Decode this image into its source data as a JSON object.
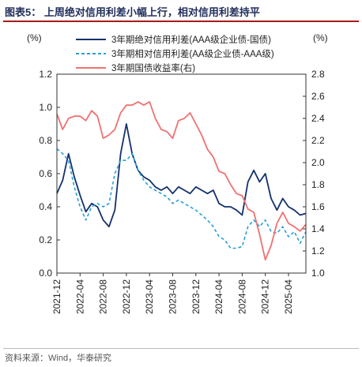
{
  "figure": {
    "title": "图表5：  上周绝对信用利差小幅上行，相对信用利差持平",
    "source": "资料来源：Wind，华泰研究"
  },
  "chart_data": {
    "type": "line",
    "left_unit": "(%)",
    "right_unit": "(%)",
    "left_axis": {
      "ylim": [
        0.0,
        1.2
      ],
      "ticks": [
        "0.0",
        "0.2",
        "0.4",
        "0.6",
        "0.8",
        "1.0",
        "1.2"
      ]
    },
    "right_axis": {
      "ylim": [
        1.0,
        2.8
      ],
      "ticks": [
        "1.0",
        "1.2",
        "1.4",
        "1.6",
        "1.8",
        "2.0",
        "2.2",
        "2.4",
        "2.6",
        "2.8"
      ]
    },
    "x_axis": {
      "start": "2021-12",
      "end": "2025-07",
      "ticks": [
        "2021-12",
        "2022-04",
        "2022-08",
        "2022-12",
        "2023-04",
        "2023-08",
        "2023-12",
        "2024-04",
        "2024-08",
        "2024-12",
        "2025-04"
      ]
    },
    "legend_position": "top-right",
    "grid": false,
    "series": [
      {
        "name": "3年期绝对信用利差(AAA级企业债-国债)",
        "axis": "left",
        "color": "#13316b",
        "style": "solid",
        "points": [
          [
            "2021-12",
            0.48
          ],
          [
            "2022-01",
            0.56
          ],
          [
            "2022-02",
            0.72
          ],
          [
            "2022-03",
            0.58
          ],
          [
            "2022-04",
            0.47
          ],
          [
            "2022-05",
            0.37
          ],
          [
            "2022-06",
            0.42
          ],
          [
            "2022-07",
            0.4
          ],
          [
            "2022-08",
            0.32
          ],
          [
            "2022-09",
            0.28
          ],
          [
            "2022-10",
            0.38
          ],
          [
            "2022-11",
            0.72
          ],
          [
            "2022-12",
            0.9
          ],
          [
            "2023-01",
            0.72
          ],
          [
            "2023-02",
            0.62
          ],
          [
            "2023-03",
            0.58
          ],
          [
            "2023-04",
            0.56
          ],
          [
            "2023-05",
            0.52
          ],
          [
            "2023-06",
            0.5
          ],
          [
            "2023-07",
            0.52
          ],
          [
            "2023-08",
            0.48
          ],
          [
            "2023-09",
            0.52
          ],
          [
            "2023-10",
            0.5
          ],
          [
            "2023-11",
            0.48
          ],
          [
            "2023-12",
            0.52
          ],
          [
            "2024-01",
            0.5
          ],
          [
            "2024-02",
            0.48
          ],
          [
            "2024-03",
            0.5
          ],
          [
            "2024-04",
            0.42
          ],
          [
            "2024-05",
            0.4
          ],
          [
            "2024-06",
            0.4
          ],
          [
            "2024-07",
            0.38
          ],
          [
            "2024-08",
            0.35
          ],
          [
            "2024-09",
            0.55
          ],
          [
            "2024-10",
            0.62
          ],
          [
            "2024-11",
            0.55
          ],
          [
            "2024-12",
            0.6
          ],
          [
            "2025-01",
            0.45
          ],
          [
            "2025-02",
            0.38
          ],
          [
            "2025-03",
            0.45
          ],
          [
            "2025-04",
            0.4
          ],
          [
            "2025-05",
            0.38
          ],
          [
            "2025-06",
            0.35
          ],
          [
            "2025-07",
            0.36
          ]
        ]
      },
      {
        "name": "3年期相对信用利差(AA级企业债-AAA级)",
        "axis": "left",
        "color": "#2a9fd6",
        "style": "dashed",
        "points": [
          [
            "2021-12",
            0.75
          ],
          [
            "2022-01",
            0.72
          ],
          [
            "2022-02",
            0.68
          ],
          [
            "2022-03",
            0.52
          ],
          [
            "2022-04",
            0.4
          ],
          [
            "2022-05",
            0.32
          ],
          [
            "2022-06",
            0.4
          ],
          [
            "2022-07",
            0.42
          ],
          [
            "2022-08",
            0.4
          ],
          [
            "2022-09",
            0.42
          ],
          [
            "2022-10",
            0.6
          ],
          [
            "2022-11",
            0.68
          ],
          [
            "2022-12",
            0.68
          ],
          [
            "2023-01",
            0.72
          ],
          [
            "2023-02",
            0.62
          ],
          [
            "2023-03",
            0.56
          ],
          [
            "2023-04",
            0.52
          ],
          [
            "2023-05",
            0.5
          ],
          [
            "2023-06",
            0.48
          ],
          [
            "2023-07",
            0.46
          ],
          [
            "2023-08",
            0.42
          ],
          [
            "2023-09",
            0.44
          ],
          [
            "2023-10",
            0.42
          ],
          [
            "2023-11",
            0.4
          ],
          [
            "2023-12",
            0.38
          ],
          [
            "2024-01",
            0.35
          ],
          [
            "2024-02",
            0.32
          ],
          [
            "2024-03",
            0.28
          ],
          [
            "2024-04",
            0.22
          ],
          [
            "2024-05",
            0.2
          ],
          [
            "2024-06",
            0.15
          ],
          [
            "2024-07",
            0.15
          ],
          [
            "2024-08",
            0.16
          ],
          [
            "2024-09",
            0.28
          ],
          [
            "2024-10",
            0.32
          ],
          [
            "2024-11",
            0.28
          ],
          [
            "2024-12",
            0.32
          ],
          [
            "2025-01",
            0.25
          ],
          [
            "2025-02",
            0.24
          ],
          [
            "2025-03",
            0.28
          ],
          [
            "2025-04",
            0.22
          ],
          [
            "2025-05",
            0.25
          ],
          [
            "2025-06",
            0.18
          ],
          [
            "2025-07",
            0.25
          ]
        ]
      },
      {
        "name": "3年期国债收益率(右)",
        "axis": "right",
        "color": "#f07070",
        "style": "solid",
        "points": [
          [
            "2021-12",
            2.44
          ],
          [
            "2022-01",
            2.3
          ],
          [
            "2022-02",
            2.4
          ],
          [
            "2022-03",
            2.42
          ],
          [
            "2022-04",
            2.42
          ],
          [
            "2022-05",
            2.38
          ],
          [
            "2022-06",
            2.47
          ],
          [
            "2022-07",
            2.42
          ],
          [
            "2022-08",
            2.22
          ],
          [
            "2022-09",
            2.25
          ],
          [
            "2022-10",
            2.3
          ],
          [
            "2022-11",
            2.45
          ],
          [
            "2022-12",
            2.52
          ],
          [
            "2023-01",
            2.52
          ],
          [
            "2023-02",
            2.55
          ],
          [
            "2023-03",
            2.52
          ],
          [
            "2023-04",
            2.55
          ],
          [
            "2023-05",
            2.4
          ],
          [
            "2023-06",
            2.3
          ],
          [
            "2023-07",
            2.28
          ],
          [
            "2023-08",
            2.22
          ],
          [
            "2023-09",
            2.38
          ],
          [
            "2023-10",
            2.4
          ],
          [
            "2023-11",
            2.45
          ],
          [
            "2023-12",
            2.35
          ],
          [
            "2024-01",
            2.25
          ],
          [
            "2024-02",
            2.12
          ],
          [
            "2024-03",
            2.05
          ],
          [
            "2024-04",
            1.92
          ],
          [
            "2024-05",
            1.9
          ],
          [
            "2024-06",
            1.8
          ],
          [
            "2024-07",
            1.72
          ],
          [
            "2024-08",
            1.7
          ],
          [
            "2024-09",
            1.58
          ],
          [
            "2024-10",
            1.55
          ],
          [
            "2024-11",
            1.35
          ],
          [
            "2024-12",
            1.12
          ],
          [
            "2025-01",
            1.25
          ],
          [
            "2025-02",
            1.45
          ],
          [
            "2025-03",
            1.55
          ],
          [
            "2025-04",
            1.45
          ],
          [
            "2025-05",
            1.42
          ],
          [
            "2025-06",
            1.38
          ],
          [
            "2025-07",
            1.44
          ]
        ]
      }
    ]
  }
}
